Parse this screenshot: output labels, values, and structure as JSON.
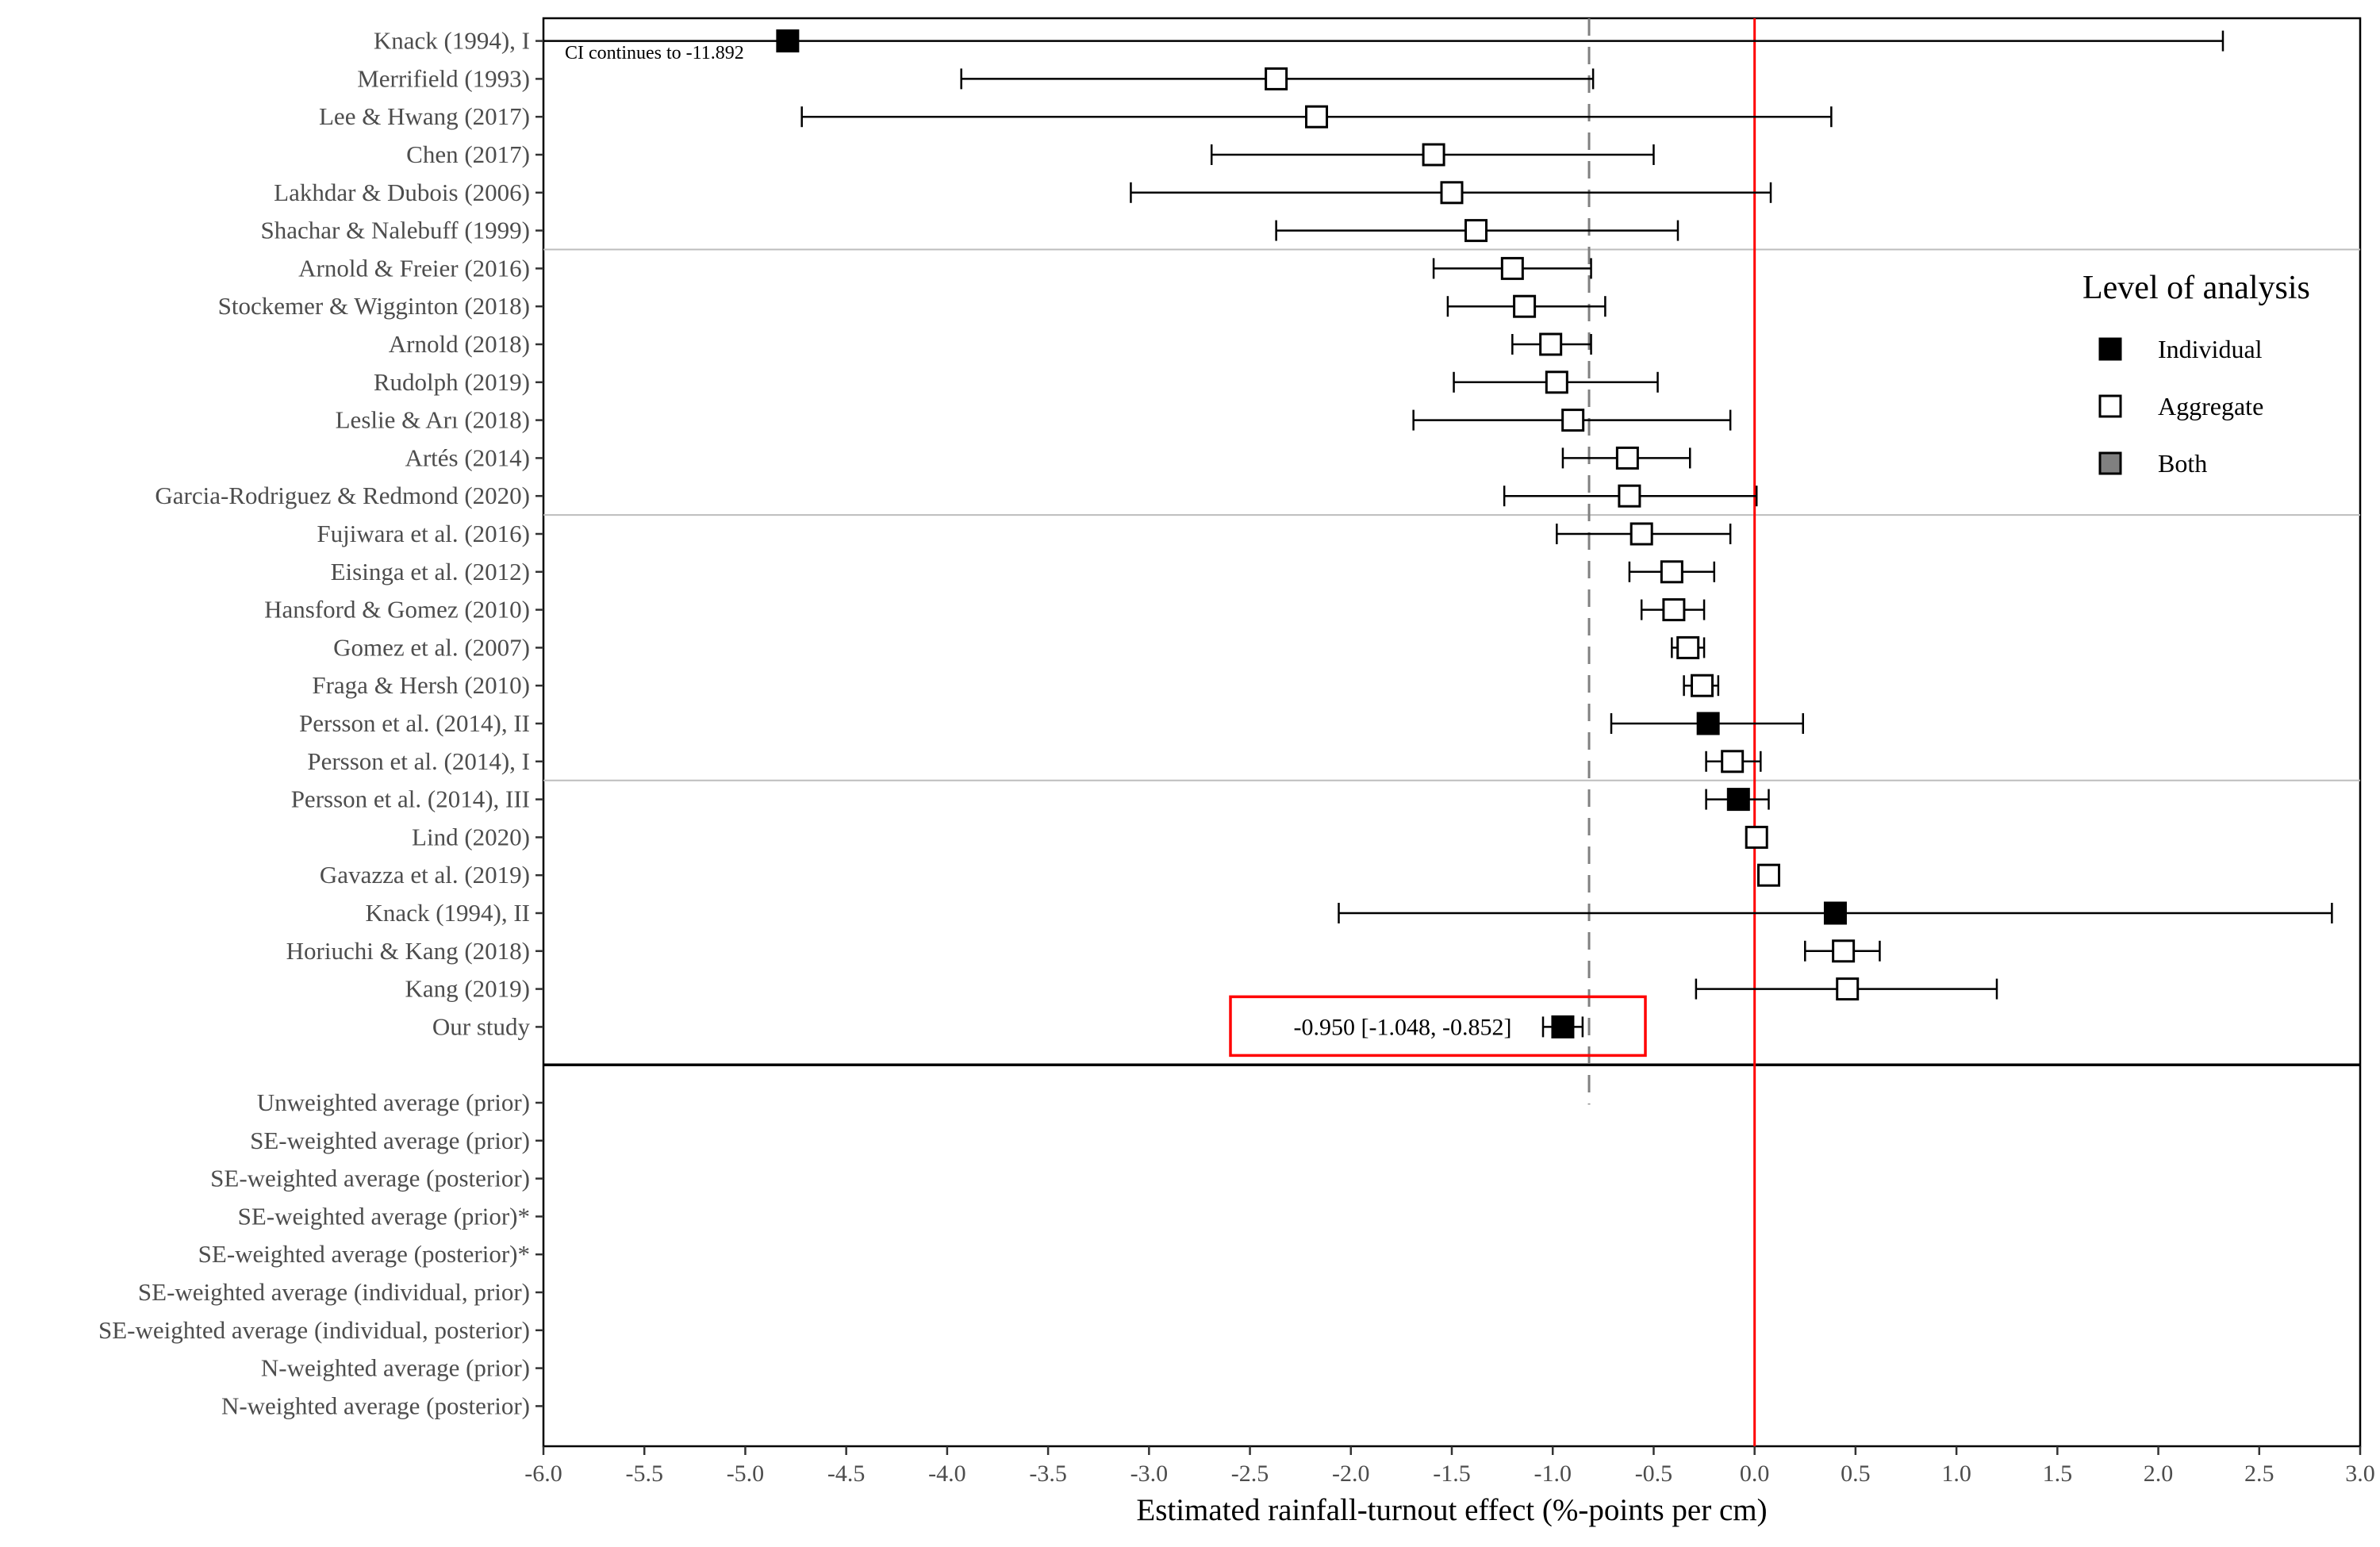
{
  "chart_data": {
    "type": "forest",
    "xlabel": "Estimated rainfall-turnout effect (%-points per cm)",
    "xlim": [
      -6.0,
      3.0
    ],
    "xticks": [
      "-6.0",
      "-5.5",
      "-5.0",
      "-4.5",
      "-4.0",
      "-3.5",
      "-3.0",
      "-2.5",
      "-2.0",
      "-1.5",
      "-1.0",
      "-0.5",
      "0.0",
      "0.5",
      "1.0",
      "1.5",
      "2.0",
      "2.5",
      "3.0"
    ],
    "reference_line": {
      "value": 0.0,
      "color": "#ff0000"
    },
    "dashed_line": {
      "value": -0.82,
      "color": "#808080"
    },
    "legend": {
      "title": "Level of analysis",
      "position": "right",
      "items": [
        {
          "label": "Individual",
          "fill": "#000000"
        },
        {
          "label": "Aggregate",
          "fill": "#ffffff"
        },
        {
          "label": "Both",
          "fill": "#808080"
        }
      ]
    },
    "annotation": "CI continues to -11.892",
    "highlight_label": "-0.950 [-1.048, -0.852]",
    "highlight_color": "#ff0000",
    "studies": [
      {
        "label": "Knack (1994), I",
        "est": -4.79,
        "lo": -11.892,
        "hi": 2.32,
        "level": "Individual"
      },
      {
        "label": "Merrifield (1993)",
        "est": -2.37,
        "lo": -3.93,
        "hi": -0.8,
        "level": "Aggregate"
      },
      {
        "label": "Lee & Hwang (2017)",
        "est": -2.17,
        "lo": -4.72,
        "hi": 0.38,
        "level": "Aggregate"
      },
      {
        "label": "Chen (2017)",
        "est": -1.59,
        "lo": -2.69,
        "hi": -0.5,
        "level": "Aggregate"
      },
      {
        "label": "Lakhdar & Dubois (2006)",
        "est": -1.5,
        "lo": -3.09,
        "hi": 0.08,
        "level": "Aggregate"
      },
      {
        "label": "Shachar & Nalebuff (1999)",
        "est": -1.38,
        "lo": -2.37,
        "hi": -0.38,
        "level": "Aggregate"
      },
      {
        "label": "Arnold & Freier (2016)",
        "est": -1.2,
        "lo": -1.59,
        "hi": -0.81,
        "level": "Aggregate"
      },
      {
        "label": "Stockemer & Wigginton (2018)",
        "est": -1.14,
        "lo": -1.52,
        "hi": -0.74,
        "level": "Aggregate"
      },
      {
        "label": "Arnold (2018)",
        "est": -1.01,
        "lo": -1.2,
        "hi": -0.81,
        "level": "Aggregate"
      },
      {
        "label": "Rudolph (2019)",
        "est": -0.98,
        "lo": -1.49,
        "hi": -0.48,
        "level": "Aggregate"
      },
      {
        "label": "Leslie & Arı (2018)",
        "est": -0.9,
        "lo": -1.69,
        "hi": -0.12,
        "level": "Aggregate"
      },
      {
        "label": "Artés (2014)",
        "est": -0.63,
        "lo": -0.95,
        "hi": -0.32,
        "level": "Aggregate"
      },
      {
        "label": "Garcia-Rodriguez & Redmond (2020)",
        "est": -0.62,
        "lo": -1.24,
        "hi": 0.01,
        "level": "Aggregate"
      },
      {
        "label": "Fujiwara et al. (2016)",
        "est": -0.56,
        "lo": -0.98,
        "hi": -0.12,
        "level": "Aggregate"
      },
      {
        "label": "Eisinga et al. (2012)",
        "est": -0.41,
        "lo": -0.62,
        "hi": -0.2,
        "level": "Aggregate"
      },
      {
        "label": "Hansford & Gomez (2010)",
        "est": -0.4,
        "lo": -0.56,
        "hi": -0.25,
        "level": "Aggregate"
      },
      {
        "label": "Gomez et al. (2007)",
        "est": -0.33,
        "lo": -0.41,
        "hi": -0.25,
        "level": "Aggregate"
      },
      {
        "label": "Fraga & Hersh (2010)",
        "est": -0.26,
        "lo": -0.35,
        "hi": -0.18,
        "level": "Aggregate"
      },
      {
        "label": "Persson et al. (2014), II",
        "est": -0.23,
        "lo": -0.71,
        "hi": 0.24,
        "level": "Individual"
      },
      {
        "label": "Persson et al. (2014), I",
        "est": -0.11,
        "lo": -0.24,
        "hi": 0.03,
        "level": "Aggregate"
      },
      {
        "label": "Persson et al. (2014), III",
        "est": -0.08,
        "lo": -0.24,
        "hi": 0.07,
        "level": "Individual"
      },
      {
        "label": "Lind (2020)",
        "est": 0.01,
        "lo": -0.02,
        "hi": 0.03,
        "level": "Aggregate"
      },
      {
        "label": "Gavazza et al. (2019)",
        "est": 0.07,
        "lo": 0.04,
        "hi": 0.1,
        "level": "Aggregate"
      },
      {
        "label": "Knack (1994), II",
        "est": 0.4,
        "lo": -2.06,
        "hi": 2.86,
        "level": "Individual"
      },
      {
        "label": "Horiuchi & Kang (2018)",
        "est": 0.44,
        "lo": 0.25,
        "hi": 0.62,
        "level": "Aggregate"
      },
      {
        "label": "Kang (2019)",
        "est": 0.46,
        "lo": -0.29,
        "hi": 1.2,
        "level": "Aggregate"
      },
      {
        "label": "Our study",
        "est": -0.95,
        "lo": -1.048,
        "hi": -0.852,
        "level": "Individual",
        "highlight": true
      }
    ],
    "group_separators_after": [
      6,
      13,
      20
    ],
    "summary_rows": [
      "Unweighted average (prior)",
      "SE-weighted average (prior)",
      "SE-weighted average (posterior)",
      "SE-weighted average (prior)*",
      "SE-weighted average (posterior)*",
      "SE-weighted average (individual, prior)",
      "SE-weighted average (individual, posterior)",
      "N-weighted average (prior)",
      "N-weighted average (posterior)"
    ]
  }
}
